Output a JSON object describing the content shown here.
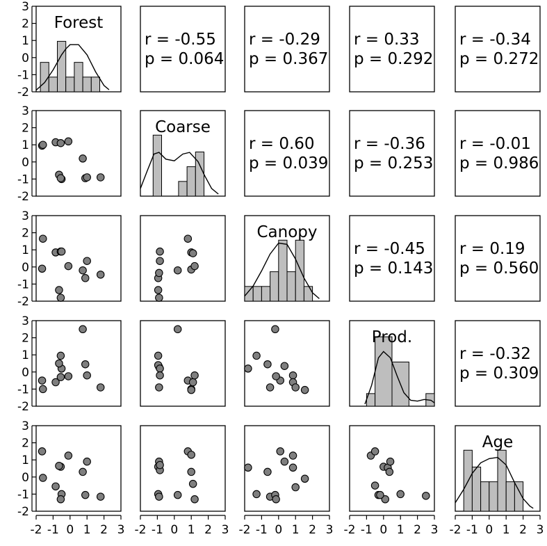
{
  "chart_data": {
    "type": "scatter-matrix",
    "variables": [
      "Forest",
      "Coarse",
      "Canopy",
      "Prod.",
      "Age"
    ],
    "axis_range": [
      -2,
      3
    ],
    "ticks": [
      "-2",
      "-1",
      "0",
      "1",
      "2",
      "3"
    ],
    "correlations": [
      {
        "row": 0,
        "col": 1,
        "r": "r = -0.55",
        "p": "p = 0.064"
      },
      {
        "row": 0,
        "col": 2,
        "r": "r = -0.29",
        "p": "p = 0.367"
      },
      {
        "row": 0,
        "col": 3,
        "r": "r = 0.33",
        "p": "p = 0.292"
      },
      {
        "row": 0,
        "col": 4,
        "r": "r = -0.34",
        "p": "p = 0.272"
      },
      {
        "row": 1,
        "col": 2,
        "r": "r = 0.60",
        "p": "p = 0.039"
      },
      {
        "row": 1,
        "col": 3,
        "r": "r = -0.36",
        "p": "p = 0.253"
      },
      {
        "row": 1,
        "col": 4,
        "r": "r = -0.01",
        "p": "p = 0.986"
      },
      {
        "row": 2,
        "col": 3,
        "r": "r = -0.45",
        "p": "p = 0.143"
      },
      {
        "row": 2,
        "col": 4,
        "r": "r = 0.19",
        "p": "p = 0.560"
      },
      {
        "row": 3,
        "col": 4,
        "r": "r = -0.32",
        "p": "p = 0.309"
      }
    ],
    "histograms": [
      {
        "breaks": [
          -1.75,
          -1.25,
          -0.75,
          -0.25,
          0.25,
          0.75,
          1.25,
          1.75
        ],
        "heights": [
          0.7,
          0.35,
          1.2,
          0.35,
          0.7,
          0.35,
          0.35
        ],
        "density": [
          [
            -2.1,
            0.04
          ],
          [
            -1.5,
            0.22
          ],
          [
            -1.0,
            0.52
          ],
          [
            -0.5,
            0.88
          ],
          [
            -0.25,
            1.02
          ],
          [
            0,
            1.12
          ],
          [
            0.5,
            1.12
          ],
          [
            1.0,
            0.88
          ],
          [
            1.5,
            0.48
          ],
          [
            2.0,
            0.15
          ],
          [
            2.3,
            0.05
          ]
        ]
      },
      {
        "breaks": [
          -1.25,
          -0.75,
          -0.25,
          0.25,
          0.75,
          1.25,
          1.75
        ],
        "heights": [
          1.45,
          0,
          0,
          0.35,
          0.7,
          1.05
        ],
        "density": [
          [
            -2.0,
            0.18
          ],
          [
            -1.6,
            0.6
          ],
          [
            -1.2,
            1.0
          ],
          [
            -0.9,
            1.04
          ],
          [
            -0.5,
            0.88
          ],
          [
            0,
            0.84
          ],
          [
            0.5,
            1.0
          ],
          [
            0.9,
            1.04
          ],
          [
            1.4,
            0.82
          ],
          [
            1.8,
            0.48
          ],
          [
            2.2,
            0.18
          ],
          [
            2.6,
            0.05
          ]
        ]
      },
      {
        "breaks": [
          -2.0,
          -1.5,
          -1.0,
          -0.5,
          0,
          0.5,
          1.0,
          1.5,
          2.0
        ],
        "heights": [
          0.35,
          0.35,
          0.35,
          0.7,
          1.45,
          0.7,
          1.45,
          0.35
        ],
        "density": [
          [
            -2.0,
            0.12
          ],
          [
            -1.5,
            0.36
          ],
          [
            -1.0,
            0.72
          ],
          [
            -0.5,
            1.12
          ],
          [
            0,
            1.38
          ],
          [
            0.5,
            1.35
          ],
          [
            1.0,
            1.0
          ],
          [
            1.5,
            0.55
          ],
          [
            2.0,
            0.2
          ],
          [
            2.4,
            0.06
          ]
        ]
      },
      {
        "breaks": [
          -1.0,
          -0.5,
          0.5,
          1.5,
          2.5,
          3.0
        ],
        "heights": [
          0.3,
          1.65,
          1.05,
          0,
          0.3
        ],
        "density": [
          [
            -1.1,
            0.05
          ],
          [
            -0.7,
            0.5
          ],
          [
            -0.3,
            1.15
          ],
          [
            0,
            1.3
          ],
          [
            0.4,
            1.15
          ],
          [
            0.8,
            0.72
          ],
          [
            1.2,
            0.32
          ],
          [
            1.6,
            0.14
          ],
          [
            2.0,
            0.12
          ],
          [
            2.4,
            0.16
          ],
          [
            2.8,
            0.14
          ],
          [
            3.0,
            0.08
          ]
        ]
      },
      {
        "breaks": [
          -1.5,
          -1.0,
          -0.5,
          0,
          0.5,
          1.0,
          1.5,
          2.0
        ],
        "heights": [
          1.45,
          1.05,
          0.7,
          0.7,
          1.45,
          0.7,
          0.7
        ],
        "density": [
          [
            -2.1,
            0.2
          ],
          [
            -1.5,
            0.52
          ],
          [
            -1.0,
            0.9
          ],
          [
            -0.5,
            1.15
          ],
          [
            0,
            1.25
          ],
          [
            0.5,
            1.28
          ],
          [
            1.0,
            1.1
          ],
          [
            1.5,
            0.68
          ],
          [
            2.0,
            0.3
          ],
          [
            2.4,
            0.12
          ],
          [
            2.6,
            0.07
          ]
        ]
      }
    ],
    "scatter": [
      {
        "row": 1,
        "col": 0,
        "x": [
          -1.65,
          -1.6,
          -0.85,
          -0.55,
          -0.5,
          -0.1,
          -0.65,
          -0.55,
          0.75,
          0.9,
          1.0,
          1.8
        ],
        "y": [
          0.95,
          1.0,
          1.15,
          1.1,
          -1.0,
          1.2,
          -0.75,
          -0.95,
          0.2,
          -0.95,
          -0.9,
          -0.9
        ]
      },
      {
        "row": 2,
        "col": 0,
        "x": [
          -1.6,
          -1.65,
          -0.85,
          -0.55,
          -0.5,
          -0.1,
          -0.65,
          -0.55,
          0.75,
          0.9,
          1.0,
          1.8
        ],
        "y": [
          1.65,
          -0.1,
          0.85,
          0.9,
          0.9,
          0.05,
          -1.35,
          -1.8,
          -0.2,
          -0.65,
          0.35,
          -0.45
        ]
      },
      {
        "row": 2,
        "col": 1,
        "x": [
          -0.95,
          -0.9,
          -0.95,
          -0.9,
          -0.85,
          -0.85,
          0.2,
          0.8,
          1.0,
          1.0,
          1.1,
          1.2
        ],
        "y": [
          -1.35,
          -1.8,
          -0.65,
          -0.35,
          0.35,
          0.9,
          -0.2,
          1.65,
          0.85,
          -0.15,
          0.8,
          0.05
        ]
      },
      {
        "row": 3,
        "col": 0,
        "x": [
          -1.65,
          -1.6,
          -0.85,
          -0.55,
          -0.5,
          -0.1,
          -0.65,
          -0.55,
          0.75,
          0.9,
          1.0,
          1.8
        ],
        "y": [
          -0.5,
          -1.0,
          -0.6,
          0.95,
          0.2,
          -0.25,
          0.5,
          -0.3,
          2.5,
          0.45,
          -0.2,
          -0.9
        ]
      },
      {
        "row": 3,
        "col": 1,
        "x": [
          -0.95,
          -0.9,
          -0.95,
          -0.9,
          -0.85,
          -0.85,
          0.2,
          0.8,
          1.0,
          1.0,
          1.1,
          1.2
        ],
        "y": [
          0.95,
          0.3,
          0.4,
          -0.9,
          0.2,
          -0.2,
          2.5,
          -0.5,
          -1.0,
          -1.05,
          -0.6,
          -0.2
        ]
      },
      {
        "row": 3,
        "col": 2,
        "x": [
          -1.8,
          -1.3,
          -0.65,
          -0.5,
          -0.2,
          0.1,
          -0.15,
          0.35,
          0.85,
          0.85,
          1.0,
          1.55
        ],
        "y": [
          0.2,
          0.95,
          0.45,
          -0.9,
          2.5,
          -0.5,
          -0.25,
          0.35,
          -0.2,
          -0.6,
          -0.9,
          -1.05
        ]
      },
      {
        "row": 4,
        "col": 0,
        "x": [
          -1.65,
          -1.6,
          -0.85,
          -0.55,
          -0.5,
          -0.1,
          -0.65,
          -0.55,
          0.75,
          0.9,
          1.0,
          1.8
        ],
        "y": [
          1.5,
          -0.05,
          -0.55,
          0.6,
          -1.0,
          1.25,
          0.65,
          -1.3,
          0.3,
          -1.05,
          0.9,
          -1.15
        ]
      },
      {
        "row": 4,
        "col": 1,
        "x": [
          -0.95,
          -0.9,
          -0.95,
          -0.9,
          -0.85,
          -0.85,
          0.2,
          0.8,
          1.0,
          1.0,
          1.1,
          1.2
        ],
        "y": [
          0.6,
          0.9,
          -1.0,
          -1.15,
          0.4,
          0.7,
          -1.05,
          1.5,
          1.3,
          0.3,
          -0.4,
          -1.3
        ]
      },
      {
        "row": 4,
        "col": 2,
        "x": [
          -1.8,
          -1.3,
          -0.65,
          -0.5,
          -0.2,
          0.1,
          -0.15,
          0.35,
          0.85,
          0.85,
          1.0,
          1.55
        ],
        "y": [
          0.55,
          -1.0,
          0.3,
          -1.15,
          -1.05,
          1.5,
          -1.3,
          0.9,
          1.25,
          0.55,
          -0.6,
          -0.1
        ]
      },
      {
        "row": 4,
        "col": 3,
        "x": [
          -0.75,
          -0.5,
          -0.3,
          0.0,
          0.1,
          0.25,
          -0.5,
          -0.2,
          0.4,
          0.35,
          1.0,
          2.5
        ],
        "y": [
          1.25,
          1.5,
          -1.05,
          0.6,
          -1.3,
          0.55,
          -0.5,
          -1.05,
          0.9,
          0.3,
          -1.0,
          -1.1
        ]
      }
    ]
  }
}
